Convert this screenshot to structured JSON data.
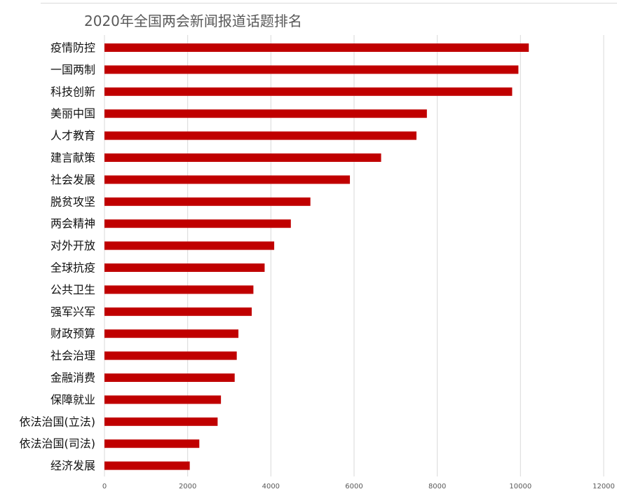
{
  "chart_data": {
    "type": "bar",
    "orientation": "horizontal",
    "title": "2020年全国两会新闻报道话题排名",
    "xlabel": "",
    "ylabel": "",
    "categories": [
      "疫情防控",
      "一国两制",
      "科技创新",
      "美丽中国",
      "人才教育",
      "建言献策",
      "社会发展",
      "脱贫攻坚",
      "两会精神",
      "对外开放",
      "全球抗疫",
      "公共卫生",
      "强军兴军",
      "财政预算",
      "社会治理",
      "金融消费",
      "保障就业",
      "依法治国(立法)",
      "依法治国(司法)",
      "经济发展"
    ],
    "values": [
      10200,
      9950,
      9800,
      7750,
      7500,
      6650,
      5900,
      4950,
      4480,
      4080,
      3850,
      3580,
      3540,
      3220,
      3180,
      3130,
      2800,
      2720,
      2280,
      2050
    ],
    "xlim": [
      0,
      12000
    ],
    "xticks": [
      0,
      2000,
      4000,
      6000,
      8000,
      10000,
      12000
    ],
    "xtick_labels": [
      "0",
      "2000",
      "4000",
      "6000",
      "8000",
      "10000",
      "12000"
    ],
    "bar_color": "#C00000",
    "grid": true,
    "gridline_color": "#d9d9d9",
    "legend": false
  }
}
